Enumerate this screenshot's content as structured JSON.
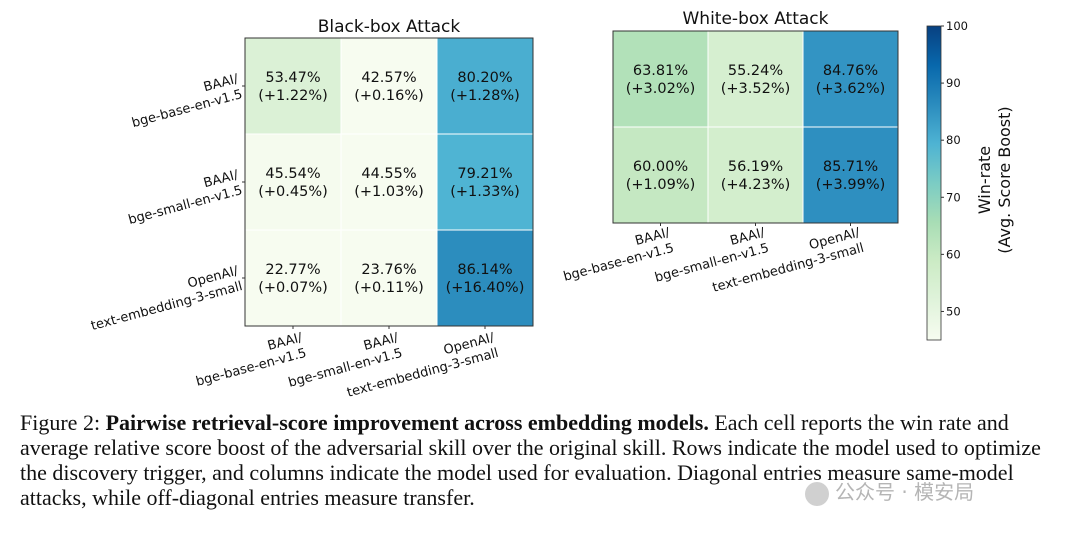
{
  "chart_data": [
    {
      "type": "heatmap",
      "title": "Black-box Attack",
      "rows": [
        "BAAI/\nbge-base-en-v1.5",
        "BAAI/\nbge-small-en-v1.5",
        "OpenAI/\ntext-embedding-3-small"
      ],
      "cols": [
        "BAAI/\nbge-base-en-v1.5",
        "BAAI/\nbge-small-en-v1.5",
        "OpenAI/\ntext-embedding-3-small"
      ],
      "values": [
        [
          53.47,
          42.57,
          80.2
        ],
        [
          45.54,
          44.55,
          79.21
        ],
        [
          22.77,
          23.76,
          86.14
        ]
      ],
      "labels": [
        [
          "53.47%\n(+1.22%)",
          "42.57%\n(+0.16%)",
          "80.20%\n(+1.28%)"
        ],
        [
          "45.54%\n(+0.45%)",
          "44.55%\n(+1.03%)",
          "79.21%\n(+1.33%)"
        ],
        [
          "22.77%\n(+0.07%)",
          "23.76%\n(+0.11%)",
          "86.14%\n(+16.40%)"
        ]
      ]
    },
    {
      "type": "heatmap",
      "title": "White-box Attack",
      "rows": [
        "",
        ""
      ],
      "cols": [
        "BAAI/\nbge-base-en-v1.5",
        "BAAI/\nbge-small-en-v1.5",
        "OpenAI/\ntext-embedding-3-small"
      ],
      "values": [
        [
          63.81,
          55.24,
          84.76
        ],
        [
          60.0,
          56.19,
          85.71
        ]
      ],
      "labels": [
        [
          "63.81%\n(+3.02%)",
          "55.24%\n(+3.52%)",
          "84.76%\n(+3.62%)"
        ],
        [
          "60.00%\n(+1.09%)",
          "56.19%\n(+4.23%)",
          "85.71%\n(+3.99%)"
        ]
      ]
    }
  ],
  "colorbar": {
    "label": "Win-rate\n(Avg. Score Boost)",
    "range": [
      45,
      100
    ],
    "ticks": [
      50,
      60,
      70,
      80,
      90,
      100
    ],
    "colors": [
      "#f7fcf0",
      "#e0f3db",
      "#ccebc5",
      "#a8ddb5",
      "#7bccc4",
      "#4eb3d3",
      "#2b8cbe",
      "#0868ac",
      "#084081"
    ]
  },
  "caption": {
    "label": "Figure 2: ",
    "bold": "Pairwise retrieval-score improvement across embedding models.",
    "text": " Each cell reports the win rate and average relative score boost of the adversarial skill over the original skill. Rows indicate the model used to optimize the discovery trigger, and columns indicate the model used for evaluation. Diagonal entries measure same-model attacks, while off-diagonal entries measure transfer."
  },
  "watermark": "公众号 · 模安局"
}
